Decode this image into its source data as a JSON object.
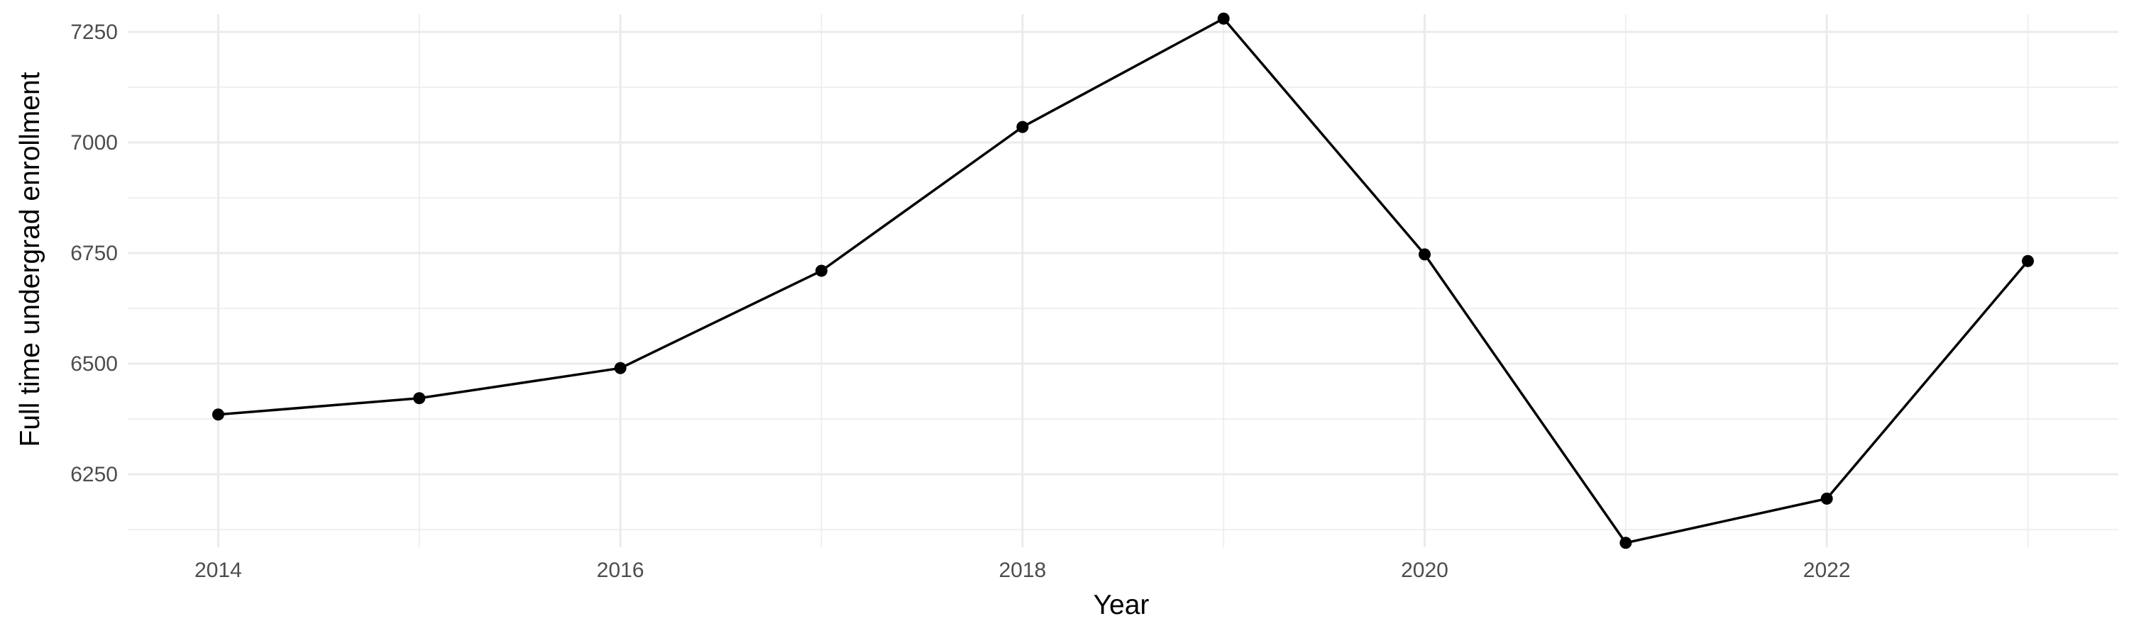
{
  "chart_data": {
    "type": "line",
    "title": "",
    "xlabel": "Year",
    "ylabel": "Full time undergrad enrollment",
    "x": [
      2014,
      2015,
      2016,
      2017,
      2018,
      2019,
      2020,
      2021,
      2022,
      2023
    ],
    "series": [
      {
        "values": [
          6385,
          6422,
          6490,
          6710,
          7035,
          7280,
          6747,
          6095,
          6195,
          6732
        ]
      }
    ],
    "x_ticks": [
      2014,
      2016,
      2018,
      2020,
      2022
    ],
    "y_ticks": [
      6250,
      6500,
      6750,
      7000,
      7250
    ],
    "x_tick_labels": [
      "2014",
      "2016",
      "2018",
      "2020",
      "2022"
    ],
    "y_tick_labels": [
      "6250",
      "6500",
      "6750",
      "7000",
      "7250"
    ],
    "xlim": [
      2013.55,
      2023.45
    ],
    "ylim": [
      6085,
      7290
    ],
    "grid": true,
    "legend": "none",
    "colors": {
      "line": "#000000",
      "point": "#000000",
      "grid": "#ebebeb",
      "background": "#ffffff"
    }
  }
}
